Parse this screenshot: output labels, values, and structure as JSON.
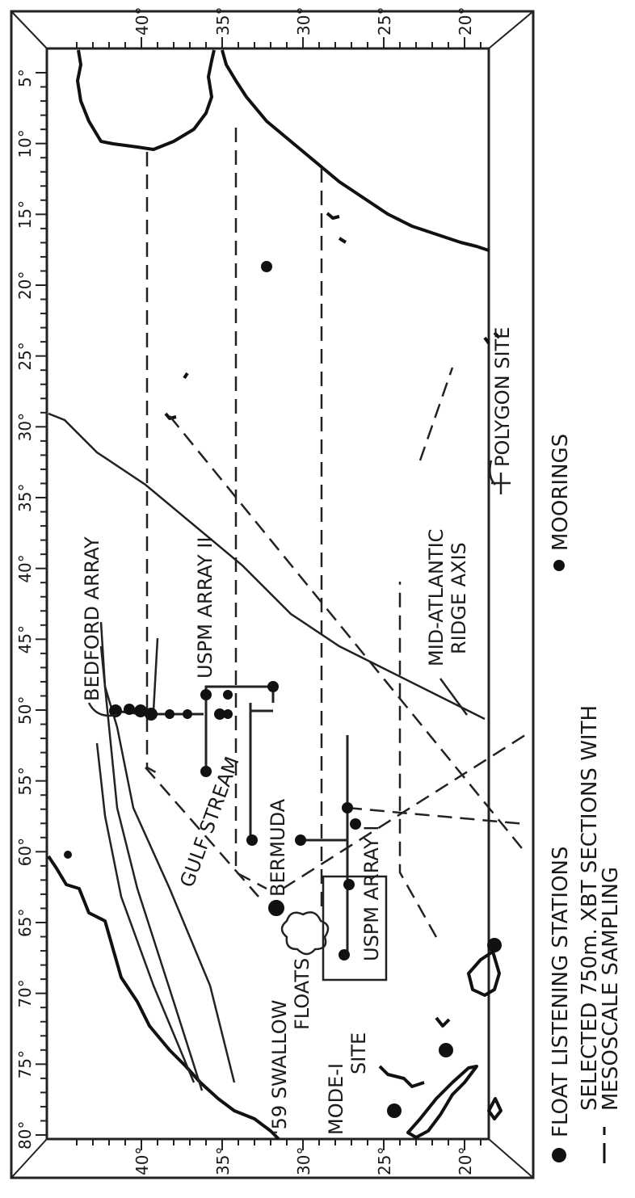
{
  "map": {
    "longitude_ticks": [
      "80°",
      "75°",
      "70°",
      "65°",
      "60°",
      "55°",
      "50°",
      "45°",
      "40°",
      "35°",
      "30°",
      "25°",
      "20°",
      "15°",
      "10°",
      "5°"
    ],
    "latitude_ticks_left": [
      "20°",
      "25°",
      "30°",
      "35°",
      "40°"
    ],
    "latitude_ticks_right": [
      "20°",
      "25°",
      "30°",
      "35°",
      "40°"
    ],
    "labels": {
      "bedford_array": "BEDFORD ARRAY",
      "uspm_array_2": "USPM ARRAY II",
      "uspm_array_1": "USPM ARRAY I",
      "gulf_stream": "GULF STREAM",
      "bermuda": "BERMUDA",
      "swallow_floats_1": "'59 SWALLOW",
      "swallow_floats_2": "FLOATS",
      "mode_site_1": "MODE-I",
      "mode_site_2": "SITE",
      "mid_atlantic_1": "MID-ATLANTIC",
      "mid_atlantic_2": "RIDGE AXIS",
      "polygon_site": "POLYGON SITE"
    },
    "legend": {
      "float_stations": "FLOAT LISTENING STATIONS",
      "moorings": "MOORINGS",
      "xbt_line1": "SELECTED 750m. XBT SECTIONS WITH",
      "xbt_line2": "MESOSCALE SAMPLING"
    }
  }
}
